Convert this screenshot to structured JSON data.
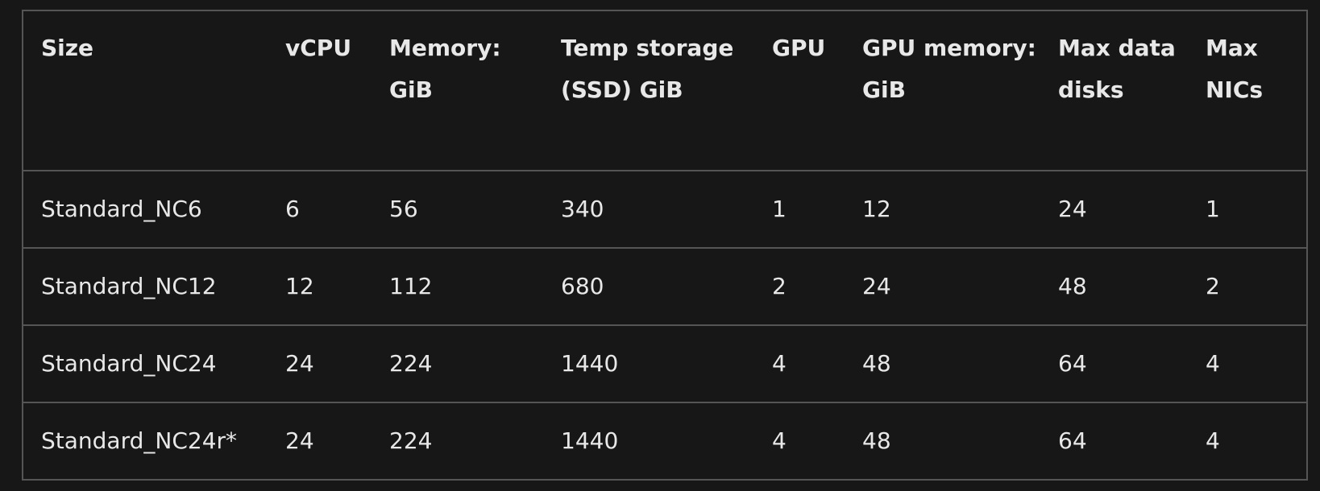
{
  "table": {
    "headers": [
      "Size",
      "vCPU",
      "Memory: GiB",
      "Temp storage (SSD) GiB",
      "GPU",
      "GPU memory: GiB",
      "Max data disks",
      "Max NICs"
    ],
    "rows": [
      [
        "Standard_NC6",
        "6",
        "56",
        "340",
        "1",
        "12",
        "24",
        "1"
      ],
      [
        "Standard_NC12",
        "12",
        "112",
        "680",
        "2",
        "24",
        "48",
        "2"
      ],
      [
        "Standard_NC24",
        "24",
        "224",
        "1440",
        "4",
        "48",
        "64",
        "4"
      ],
      [
        "Standard_NC24r*",
        "24",
        "224",
        "1440",
        "4",
        "48",
        "64",
        "4"
      ]
    ]
  },
  "colors": {
    "background": "#171717",
    "text": "#e8e8e8",
    "border": "#555555"
  }
}
